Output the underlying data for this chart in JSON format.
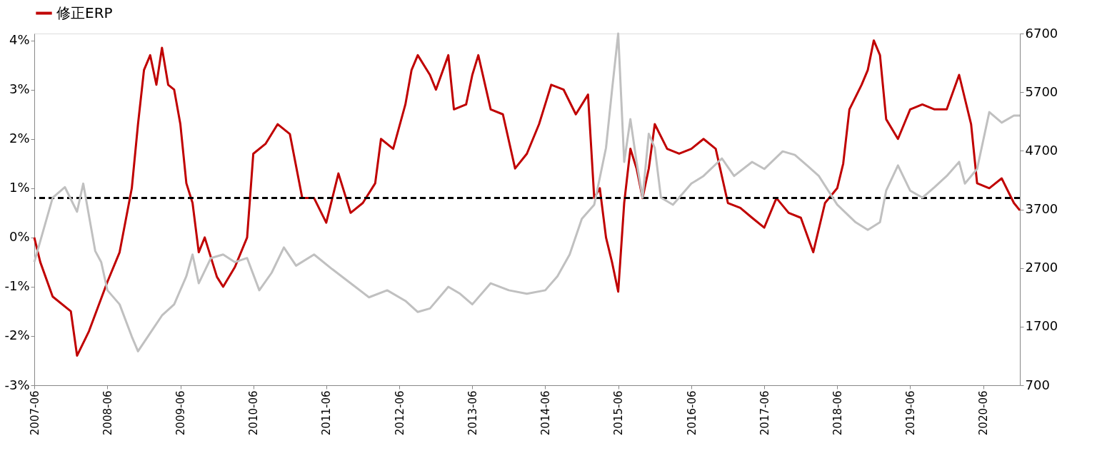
{
  "chart_data": {
    "type": "line",
    "xlim": [
      "2007-06",
      "2020-12"
    ],
    "xticks": [
      "2007-06",
      "2008-06",
      "2009-06",
      "2010-06",
      "2011-06",
      "2012-06",
      "2013-06",
      "2014-06",
      "2015-06",
      "2016-06",
      "2017-06",
      "2018-06",
      "2019-06",
      "2020-06"
    ],
    "ylim": [
      -3,
      4.14
    ],
    "yticks": [
      {
        "value": -3,
        "label": "-3%"
      },
      {
        "value": -2,
        "label": "-2%"
      },
      {
        "value": -1,
        "label": "-1%"
      },
      {
        "value": 0,
        "label": "0%"
      },
      {
        "value": 1,
        "label": "1%"
      },
      {
        "value": 2,
        "label": "2%"
      },
      {
        "value": 3,
        "label": "3%"
      },
      {
        "value": 4,
        "label": "4%"
      }
    ],
    "y2lim": [
      700,
      6700
    ],
    "y2ticks": [
      700,
      1700,
      2700,
      3700,
      4700,
      5700,
      6700
    ],
    "grid": false,
    "legend": "top",
    "line_style": "solid",
    "marker": "none",
    "series": [
      {
        "name": "修正ERP",
        "color": "#c00000",
        "x": [
          "2007-06",
          "2007-07",
          "2007-09",
          "2007-12",
          "2008-01",
          "2008-03",
          "2008-06",
          "2008-08",
          "2008-10",
          "2008-11",
          "2008-12",
          "2009-01",
          "2009-02",
          "2009-03",
          "2009-04",
          "2009-05",
          "2009-06",
          "2009-07",
          "2009-08",
          "2009-09",
          "2009-10",
          "2009-12",
          "2010-01",
          "2010-03",
          "2010-05",
          "2010-06",
          "2010-08",
          "2010-10",
          "2010-12",
          "2011-02",
          "2011-04",
          "2011-06",
          "2011-08",
          "2011-10",
          "2011-12",
          "2012-02",
          "2012-03",
          "2012-05",
          "2012-07",
          "2012-08",
          "2012-09",
          "2012-11",
          "2012-12",
          "2013-02",
          "2013-03",
          "2013-05",
          "2013-06",
          "2013-07",
          "2013-09",
          "2013-11",
          "2014-01",
          "2014-03",
          "2014-05",
          "2014-07",
          "2014-09",
          "2014-11",
          "2015-01",
          "2015-02",
          "2015-03",
          "2015-04",
          "2015-05",
          "2015-06",
          "2015-07",
          "2015-08",
          "2015-09",
          "2015-10",
          "2015-11",
          "2015-12",
          "2016-02",
          "2016-04",
          "2016-06",
          "2016-08",
          "2016-10",
          "2016-12",
          "2017-02",
          "2017-04",
          "2017-06",
          "2017-08",
          "2017-10",
          "2017-12",
          "2018-02",
          "2018-04",
          "2018-06",
          "2018-07",
          "2018-08",
          "2018-10",
          "2018-11",
          "2018-12",
          "2019-01",
          "2019-02",
          "2019-04",
          "2019-06",
          "2019-08",
          "2019-10",
          "2019-12",
          "2020-02",
          "2020-04",
          "2020-05",
          "2020-07",
          "2020-09",
          "2020-11",
          "2020-12"
        ],
        "values": [
          0.0,
          -0.5,
          -1.2,
          -1.5,
          -2.4,
          -1.9,
          -0.9,
          -0.3,
          1.0,
          2.3,
          3.4,
          3.7,
          3.1,
          3.85,
          3.1,
          3.0,
          2.3,
          1.1,
          0.7,
          -0.3,
          0.0,
          -0.8,
          -1.0,
          -0.6,
          0.0,
          1.7,
          1.9,
          2.3,
          2.1,
          0.8,
          0.8,
          0.3,
          1.3,
          0.5,
          0.7,
          1.1,
          2.0,
          1.8,
          2.7,
          3.4,
          3.7,
          3.3,
          3.0,
          3.7,
          2.6,
          2.7,
          3.3,
          3.7,
          2.6,
          2.5,
          1.4,
          1.7,
          2.3,
          3.1,
          3.0,
          2.5,
          2.9,
          0.8,
          1.0,
          0.0,
          -0.5,
          -1.1,
          0.7,
          1.8,
          1.4,
          0.8,
          1.4,
          2.3,
          1.8,
          1.7,
          1.8,
          2.0,
          1.8,
          0.7,
          0.6,
          0.4,
          0.2,
          0.8,
          0.5,
          0.4,
          -0.3,
          0.7,
          1.0,
          1.5,
          2.6,
          3.1,
          3.4,
          4.0,
          3.7,
          2.4,
          2.0,
          2.6,
          2.7,
          2.6,
          2.6,
          3.3,
          2.3,
          1.1,
          1.0,
          1.2,
          0.7,
          0.55
        ]
      },
      {
        "color": "#c0c0c0",
        "axis": "y2",
        "x": [
          "2007-06",
          "2007-09",
          "2007-11",
          "2008-01",
          "2008-02",
          "2008-04",
          "2008-05",
          "2008-06",
          "2008-08",
          "2008-10",
          "2008-11",
          "2009-01",
          "2009-03",
          "2009-05",
          "2009-07",
          "2009-08",
          "2009-09",
          "2009-11",
          "2010-01",
          "2010-03",
          "2010-05",
          "2010-07",
          "2010-09",
          "2010-11",
          "2011-01",
          "2011-04",
          "2011-07",
          "2011-10",
          "2012-01",
          "2012-04",
          "2012-07",
          "2012-09",
          "2012-11",
          "2013-02",
          "2013-04",
          "2013-06",
          "2013-09",
          "2013-12",
          "2014-03",
          "2014-06",
          "2014-08",
          "2014-10",
          "2014-12",
          "2015-02",
          "2015-04",
          "2015-05",
          "2015-06",
          "2015-07",
          "2015-08",
          "2015-09",
          "2015-10",
          "2015-11",
          "2015-12",
          "2016-01",
          "2016-03",
          "2016-06",
          "2016-08",
          "2016-11",
          "2017-01",
          "2017-04",
          "2017-06",
          "2017-09",
          "2017-11",
          "2018-01",
          "2018-03",
          "2018-06",
          "2018-09",
          "2018-11",
          "2019-01",
          "2019-02",
          "2019-04",
          "2019-06",
          "2019-08",
          "2019-10",
          "2019-12",
          "2020-02",
          "2020-03",
          "2020-05",
          "2020-07",
          "2020-09",
          "2020-11",
          "2020-12"
        ],
        "values": [
          2800,
          3900,
          4080,
          3660,
          4140,
          2990,
          2800,
          2320,
          2080,
          1530,
          1280,
          1590,
          1890,
          2080,
          2560,
          2930,
          2440,
          2870,
          2930,
          2800,
          2870,
          2320,
          2620,
          3050,
          2740,
          2930,
          2680,
          2440,
          2200,
          2320,
          2140,
          1950,
          2010,
          2380,
          2260,
          2080,
          2440,
          2320,
          2260,
          2320,
          2560,
          2930,
          3540,
          3780,
          4750,
          5730,
          6700,
          4510,
          5240,
          4510,
          3900,
          4990,
          4750,
          3900,
          3780,
          4140,
          4270,
          4570,
          4270,
          4510,
          4390,
          4690,
          4630,
          4450,
          4270,
          3780,
          3480,
          3350,
          3480,
          4020,
          4450,
          4020,
          3900,
          4080,
          4270,
          4510,
          4140,
          4390,
          5360,
          5180,
          5300,
          5300
        ]
      }
    ],
    "ref_lines": [
      {
        "axis": "y",
        "value": 0.8,
        "color": "#000000",
        "line_style": "dashed"
      }
    ]
  }
}
